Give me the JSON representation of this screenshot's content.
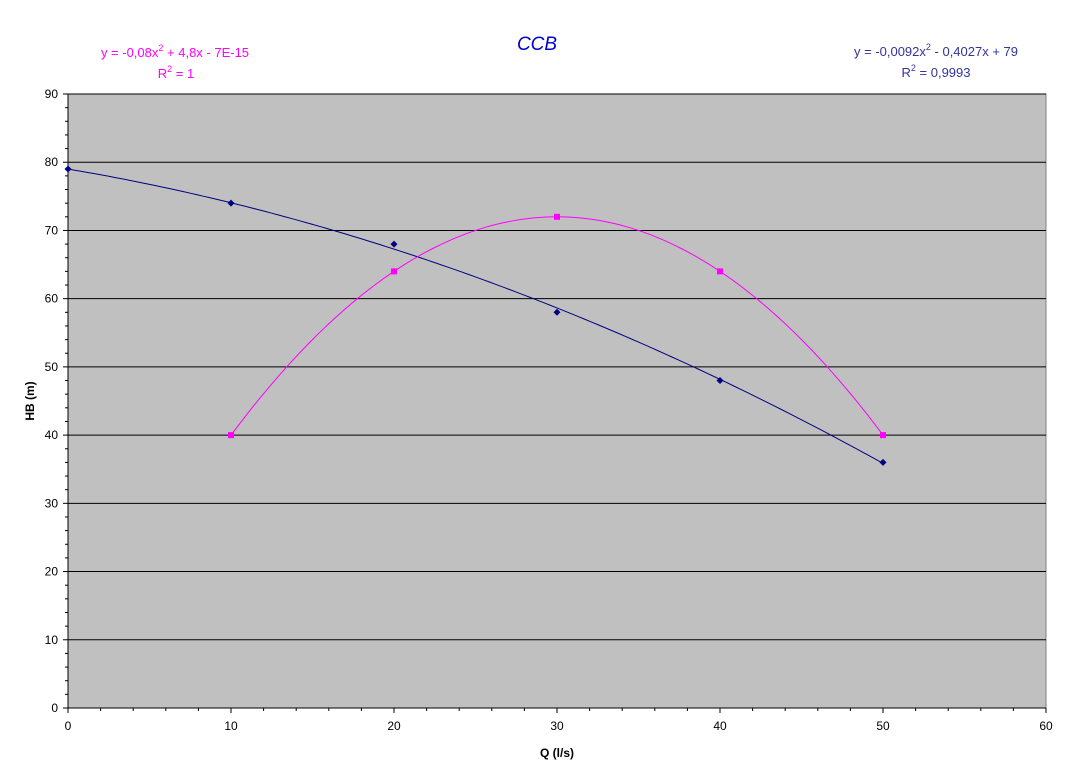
{
  "chart_data": {
    "type": "scatter",
    "title": "CCB",
    "xlabel": "Q (l/s)",
    "ylabel": "HB (m)",
    "xlim": [
      0,
      60
    ],
    "ylim": [
      0,
      90
    ],
    "x_ticks": [
      "0",
      "10",
      "20",
      "30",
      "40",
      "50",
      "60"
    ],
    "y_ticks": [
      "0",
      "10",
      "20",
      "30",
      "40",
      "50",
      "60",
      "70",
      "80",
      "90"
    ],
    "grid": "horizontal major",
    "plot_background": "#c0c0c0",
    "series": [
      {
        "color": "#000080",
        "marker": "diamond",
        "x": [
          0,
          10,
          20,
          30,
          40,
          50
        ],
        "y": [
          79,
          74,
          68,
          58,
          48,
          36
        ],
        "trendline": {
          "type": "polynomial-2",
          "coefficients": [
            -0.0092,
            -0.4027,
            79
          ],
          "equation_text": {
            "pre": "y = -0,0092x",
            "sup": "2",
            "post": " - 0,4027x + 79"
          },
          "r2_text": {
            "pre": "R",
            "sup": "2",
            "post": " = 0,9993"
          },
          "label_color": "#333399"
        }
      },
      {
        "color": "#ff00ff",
        "marker": "square",
        "x": [
          10,
          20,
          30,
          40,
          50
        ],
        "y": [
          40,
          64,
          72,
          64,
          40
        ],
        "trendline": {
          "type": "polynomial-2",
          "coefficients": [
            -0.08,
            4.8,
            0
          ],
          "equation_text": {
            "pre": "y = -0,08x",
            "sup": "2",
            "post": " + 4,8x - 7E-15"
          },
          "r2_text": {
            "pre": "R",
            "sup": "2",
            "post": " = 1"
          },
          "label_color": "#ff00ff"
        }
      }
    ]
  }
}
